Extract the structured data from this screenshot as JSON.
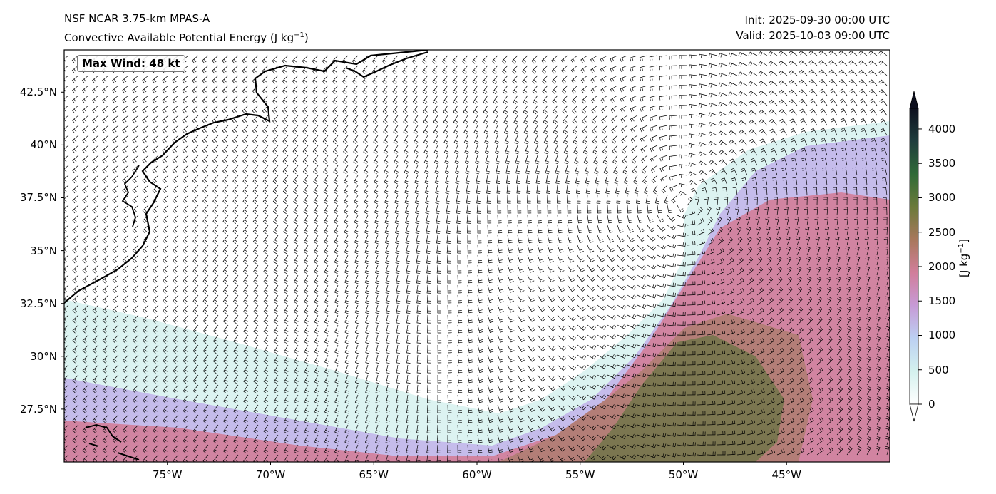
{
  "header": {
    "model": "NSF NCAR 3.75-km MPAS-A",
    "field": "Convective Available Potential Energy (J kg",
    "field_exp": "−1",
    "field_close": ")",
    "init": "Init: 2025-09-30 00:00 UTC",
    "valid": "Valid: 2025-10-03 09:00 UTC"
  },
  "annotation": {
    "max_wind": "Max Wind: 48 kt"
  },
  "axes": {
    "lon_ticks": [
      "75°W",
      "70°W",
      "65°W",
      "60°W",
      "55°W",
      "50°W",
      "45°W"
    ],
    "lon_values": [
      -75,
      -70,
      -65,
      -60,
      -55,
      -50,
      -45
    ],
    "lat_ticks": [
      "42.5°N",
      "40°N",
      "37.5°N",
      "35°N",
      "32.5°N",
      "30°N",
      "27.5°N"
    ],
    "lat_values": [
      42.5,
      40,
      37.5,
      35,
      32.5,
      30,
      27.5
    ],
    "lon_range": [
      -80,
      -40
    ],
    "lat_range": [
      25,
      44.5
    ]
  },
  "colorbar": {
    "ticks": [
      "0",
      "500",
      "1000",
      "1500",
      "2000",
      "2500",
      "3000",
      "3500",
      "4000"
    ],
    "tick_values": [
      0,
      500,
      1000,
      1500,
      2000,
      2500,
      3000,
      3500,
      4000
    ],
    "range": [
      0,
      4300
    ],
    "unit_label": "[J kg",
    "unit_exp": "−1",
    "unit_close": "]",
    "colors": [
      "#ffffff",
      "#d4f1ee",
      "#bcd0f2",
      "#c79ad6",
      "#d17e9b",
      "#a8785c",
      "#6b7a3a",
      "#2f6a37",
      "#1f3d3d",
      "#0d0f1e"
    ]
  },
  "map_colors": {
    "land": "#ffffff",
    "coast": "#000000",
    "low_cape": "#d8f2ef",
    "mid_cape": "#c2b6ea",
    "high_cape": "#d27d99",
    "very_high_cape": "#3f6f3a"
  }
}
